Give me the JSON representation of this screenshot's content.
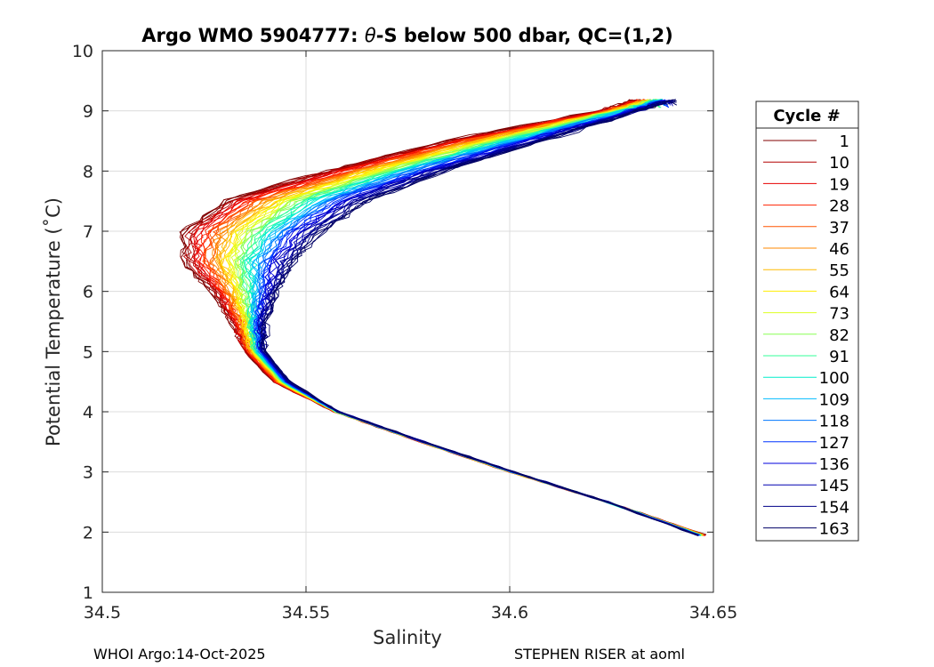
{
  "chart_data": {
    "type": "line",
    "title_prefix": "Argo WMO 5904777: ",
    "title_theta": "θ",
    "title_suffix": "-S below 500 dbar,  QC=(1,2)",
    "xlabel": "Salinity",
    "ylabel": "Potential Temperature (˚C)",
    "xlim": [
      34.5,
      34.65
    ],
    "ylim": [
      1,
      10
    ],
    "xticks": [
      "34.5",
      "34.55",
      "34.6",
      "34.65"
    ],
    "yticks": [
      "1",
      "2",
      "3",
      "4",
      "5",
      "6",
      "7",
      "8",
      "9",
      "10"
    ],
    "grid": true,
    "legend_title": "Cycle #",
    "legend_position": "outside-right",
    "series": [
      {
        "name": "1",
        "color": "#800000"
      },
      {
        "name": "10",
        "color": "#b30000"
      },
      {
        "name": "19",
        "color": "#e60000"
      },
      {
        "name": "28",
        "color": "#ff2200"
      },
      {
        "name": "37",
        "color": "#ff5500"
      },
      {
        "name": "46",
        "color": "#ff8800"
      },
      {
        "name": "55",
        "color": "#ffbb00"
      },
      {
        "name": "64",
        "color": "#ffee00"
      },
      {
        "name": "73",
        "color": "#ddff22"
      },
      {
        "name": "82",
        "color": "#88ff55"
      },
      {
        "name": "91",
        "color": "#33ff99"
      },
      {
        "name": "100",
        "color": "#00eecc"
      },
      {
        "name": "109",
        "color": "#00bbff"
      },
      {
        "name": "118",
        "color": "#0077ff"
      },
      {
        "name": "127",
        "color": "#0033ff"
      },
      {
        "name": "136",
        "color": "#0000dd"
      },
      {
        "name": "145",
        "color": "#0000b0"
      },
      {
        "name": "154",
        "color": "#000088"
      },
      {
        "name": "163",
        "color": "#000066"
      }
    ],
    "profile": {
      "theta": [
        1.95,
        2.5,
        3.0,
        3.5,
        4.0,
        4.5,
        5.0,
        5.5,
        6.0,
        6.5,
        7.0,
        7.5,
        8.0,
        8.5,
        9.0,
        9.2
      ],
      "salinity_start": [
        34.648,
        34.624,
        34.6,
        34.578,
        34.557,
        34.542,
        34.535,
        34.532,
        34.527,
        34.52,
        34.52,
        34.53,
        34.555,
        34.585,
        34.622,
        34.632
      ],
      "salinity_end": [
        34.646,
        34.624,
        34.601,
        34.579,
        34.558,
        34.546,
        34.54,
        34.54,
        34.543,
        34.547,
        34.554,
        34.565,
        34.584,
        34.608,
        34.632,
        34.641
      ]
    }
  },
  "footer": {
    "left": "WHOI Argo:14-Oct-2025",
    "right": "STEPHEN RISER at aoml"
  }
}
